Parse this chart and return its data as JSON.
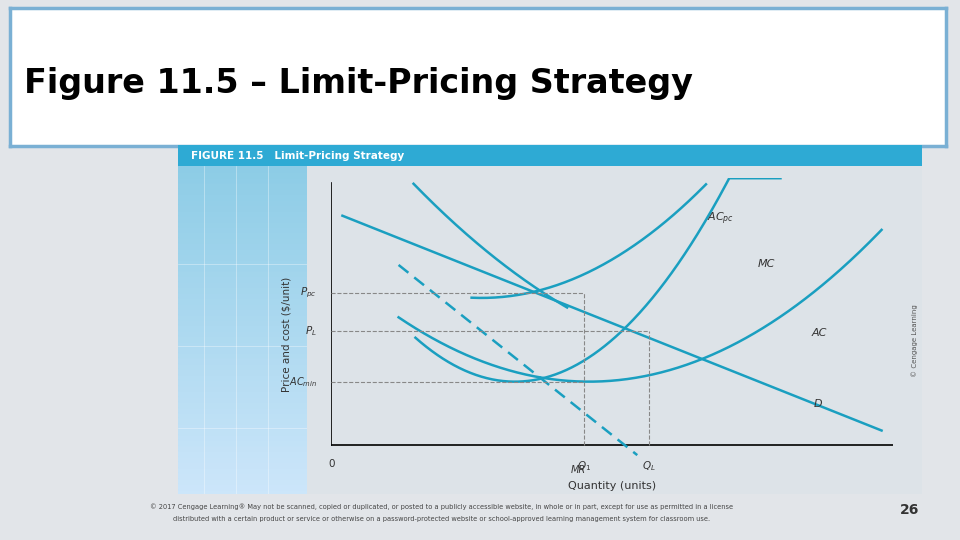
{
  "title": "Figure 11.5 – Limit-Pricing Strategy",
  "fig_title": "FIGURE 11.5   Limit-Pricing Strategy",
  "bg_color": "#dde3e8",
  "slide_bg": "#e2e5e9",
  "header_bg": "#2eaad4",
  "header_text_color": "#ffffff",
  "box_border_color": "#7ab0d4",
  "curve_color": "#1a9fc0",
  "dashed_color": "#1a9fc0",
  "ref_line_color": "#888888",
  "text_color": "#333333",
  "ylabel": "Price and cost ($/unit)",
  "xlabel": "Quantity (units)",
  "footer": "© 2017 Cengage Learning® May not be scanned, copied or duplicated, or posted to a publicly accessible website, in whole or in part, except for use as permitted in a license distributed with a certain product or service or otherwise on a password-protected website or school-approved learning management system for classroom use.",
  "page_num": "26",
  "cengage_watermark": "© Cengage Learning"
}
